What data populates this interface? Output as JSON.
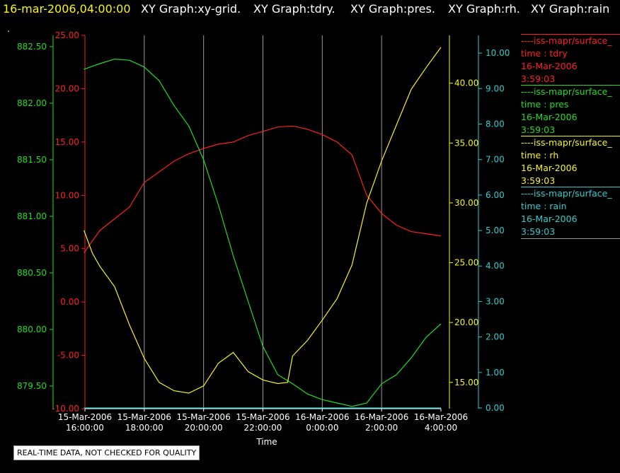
{
  "header": {
    "datetime": "16-mar-2006,04:00:00",
    "graphs": [
      "XY Graph:xy-grid.",
      "XY Graph:tdry.",
      "XY Graph:pres.",
      "XY Graph:rh.",
      "XY Graph:rain"
    ],
    "dot": "."
  },
  "colors": {
    "tdry": "#ff2020",
    "pres": "#22dd22",
    "rh": "#f5f51e",
    "rain": "#33cccc",
    "grid": "#9a9a9a",
    "time_axis": "#ffffff"
  },
  "legend": [
    {
      "series": "----iss-mapr/surface_",
      "label": "time : tdry",
      "date": "16-Mar-2006",
      "time": "3:59:03"
    },
    {
      "series": "----iss-mapr/surface_",
      "label": "time : pres",
      "date": "16-Mar-2006",
      "time": "3:59:03"
    },
    {
      "series": "----iss-mapr/surface_",
      "label": "time : rh",
      "date": "16-Mar-2006",
      "time": "3:59:03"
    },
    {
      "series": "----iss-mapr/surface_",
      "label": "time : rain",
      "date": "16-Mar-2006",
      "time": "3:59:03"
    }
  ],
  "footer_note": "REAL-TIME DATA, NOT CHECKED FOR QUALITY",
  "chart_data": {
    "type": "line",
    "xlabel": "Time",
    "x_ticks": [
      [
        "15-Mar-2006",
        "16:00:00"
      ],
      [
        "15-Mar-2006",
        "18:00:00"
      ],
      [
        "15-Mar-2006",
        "20:00:00"
      ],
      [
        "15-Mar-2006",
        "22:00:00"
      ],
      [
        "16-Mar-2006",
        "0:00:00"
      ],
      [
        "16-Mar-2006",
        "2:00:00"
      ],
      [
        "16-Mar-2006",
        "4:00:00"
      ]
    ],
    "xlim": [
      "2006-03-15 16:00",
      "2006-03-16 04:00"
    ],
    "grid": "vertical",
    "axes": {
      "tdry": {
        "ylim": [
          -10,
          25
        ],
        "ticks": [
          "-10.00",
          "-5.00",
          "0.00",
          "5.00",
          "10.00",
          "15.00",
          "20.00",
          "25.00"
        ]
      },
      "pres": {
        "ylim": [
          879.3,
          882.6
        ],
        "ticks": [
          "879.50",
          "880.00",
          "880.50",
          "881.00",
          "881.50",
          "882.00",
          "882.50"
        ]
      },
      "rh": {
        "ylim": [
          12.8,
          44.0
        ],
        "ticks": [
          "15.00",
          "20.00",
          "25.00",
          "30.00",
          "35.00",
          "40.00"
        ]
      },
      "rain": {
        "ylim": [
          -0.02,
          10.5
        ],
        "ticks": [
          "0.00",
          "1.00",
          "2.00",
          "3.00",
          "4.00",
          "5.00",
          "6.00",
          "7.00",
          "8.00",
          "9.00",
          "10.00"
        ]
      }
    },
    "series": [
      {
        "key": "tdry",
        "x": [
          "15:58",
          "16:30",
          "17:00",
          "17:30",
          "18:00",
          "18:30",
          "19:00",
          "19:30",
          "20:00",
          "20:30",
          "21:00",
          "21:30",
          "22:00",
          "22:30",
          "23:00",
          "23:30",
          "0:00",
          "0:30",
          "1:00",
          "1:30",
          "2:00",
          "2:30",
          "3:00",
          "3:30",
          "4:00"
        ],
        "values": [
          4.6,
          6.7,
          7.8,
          8.9,
          11.2,
          12.2,
          13.2,
          13.9,
          14.4,
          14.8,
          15.0,
          15.6,
          16.0,
          16.4,
          16.5,
          16.2,
          15.7,
          15.0,
          13.8,
          10.0,
          8.3,
          7.2,
          6.6,
          6.4,
          6.2
        ]
      },
      {
        "key": "pres",
        "x": [
          "15:58",
          "16:30",
          "17:00",
          "17:30",
          "18:00",
          "18:30",
          "19:00",
          "19:30",
          "20:00",
          "20:30",
          "21:00",
          "21:30",
          "22:00",
          "22:30",
          "23:00",
          "23:30",
          "0:00",
          "0:30",
          "1:00",
          "1:30",
          "2:00",
          "2:30",
          "3:00",
          "3:30",
          "4:00"
        ],
        "values": [
          882.3,
          882.35,
          882.39,
          882.38,
          882.32,
          882.2,
          881.98,
          881.8,
          881.5,
          881.1,
          880.65,
          880.25,
          879.85,
          879.6,
          879.52,
          879.43,
          879.38,
          879.35,
          879.32,
          879.35,
          879.52,
          879.6,
          879.75,
          879.93,
          880.05
        ]
      },
      {
        "key": "rh",
        "x": [
          "15:58",
          "16:15",
          "16:30",
          "17:00",
          "17:30",
          "18:00",
          "18:30",
          "19:00",
          "19:30",
          "20:00",
          "20:30",
          "21:00",
          "21:30",
          "22:00",
          "22:30",
          "22:50",
          "23:00",
          "23:30",
          "0:00",
          "0:30",
          "1:00",
          "1:30",
          "2:00",
          "2:30",
          "3:00",
          "3:30",
          "4:00"
        ],
        "values": [
          27.7,
          25.8,
          24.7,
          23.0,
          19.8,
          17.0,
          15.0,
          14.3,
          14.1,
          14.7,
          16.6,
          17.5,
          15.9,
          15.2,
          14.9,
          15.0,
          17.2,
          18.5,
          20.2,
          22.0,
          24.8,
          30.0,
          33.5,
          36.5,
          39.5,
          41.3,
          43.0
        ]
      },
      {
        "key": "rain",
        "x": [
          "15:58",
          "4:00"
        ],
        "values": [
          0.0,
          0.0
        ]
      }
    ]
  }
}
